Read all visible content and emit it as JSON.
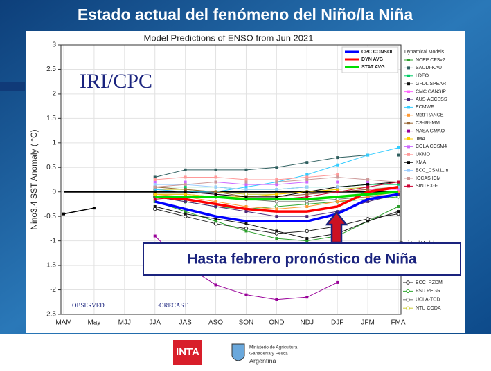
{
  "page_title": "Estado actual del fenómeno del Niño/la Niña",
  "footer": {
    "logo": "INTA",
    "ministry": [
      "Ministerio de Agricultura,",
      "Ganadería y Pesca",
      "Argentina"
    ]
  },
  "chart_data": {
    "type": "line",
    "title": "Model Predictions of ENSO from Jun 2021",
    "y_label": "Nino3.4 SST Anomaly ( °C)",
    "annotations": {
      "source": "IRI/CPC",
      "observed": "OBSERVED",
      "forecast": "FORECAST",
      "callout": "Hasta febrero pronóstico de Niña"
    },
    "categories": [
      "MAM",
      "May",
      "MJJ",
      "JJA",
      "JAS",
      "ASO",
      "SON",
      "OND",
      "NDJ",
      "DJF",
      "JFM",
      "FMA"
    ],
    "ylim": [
      -2.5,
      3.0
    ],
    "yticks": [
      -2.5,
      -2.0,
      -1.5,
      -1.0,
      -0.5,
      0.0,
      0.5,
      1.0,
      1.5,
      2.0,
      2.5,
      3.0
    ],
    "grid": true,
    "observed": {
      "color": "#000000",
      "values": [
        -0.45,
        -0.33,
        null,
        null,
        null,
        null,
        null,
        null,
        null,
        null,
        null,
        null
      ]
    },
    "series": [
      {
        "name": "CPC CONSOL",
        "color": "#0000ff",
        "values": [
          null,
          null,
          null,
          -0.2,
          -0.35,
          -0.5,
          -0.6,
          -0.6,
          -0.6,
          -0.45,
          -0.15,
          -0.05
        ]
      },
      {
        "name": "DYN AVG",
        "color": "#ff0000",
        "values": [
          null,
          null,
          null,
          -0.1,
          -0.15,
          -0.25,
          -0.35,
          -0.4,
          -0.4,
          -0.3,
          0.0,
          0.1
        ]
      },
      {
        "name": "STAT AVG",
        "color": "#00dd00",
        "values": [
          null,
          null,
          null,
          -0.1,
          -0.1,
          -0.1,
          -0.15,
          -0.15,
          -0.15,
          -0.1,
          -0.05,
          0.0
        ]
      }
    ],
    "dynamical_models": {
      "title": "Dynamical Models",
      "series": [
        {
          "name": "NCEP CFSv2",
          "color": "#2ca02c",
          "values": [
            null,
            null,
            null,
            -0.2,
            -0.4,
            -0.6,
            -0.8,
            -0.95,
            -1.0,
            -0.9,
            -0.6,
            -0.3
          ]
        },
        {
          "name": "SAUDI-KAU",
          "color": "#2f5f5f",
          "values": [
            null,
            null,
            null,
            0.3,
            0.45,
            0.45,
            0.45,
            0.5,
            0.6,
            0.7,
            0.75,
            0.75
          ]
        },
        {
          "name": "LDEO",
          "color": "#00cc66",
          "values": [
            null,
            null,
            null,
            0.1,
            0.1,
            0.1,
            0.05,
            0.05,
            0.1,
            0.1,
            0.15,
            0.15
          ]
        },
        {
          "name": "GFDL SPEAR",
          "color": "#111111",
          "values": [
            null,
            null,
            null,
            -0.3,
            -0.45,
            -0.55,
            -0.65,
            -0.8,
            -0.95,
            -0.85,
            -0.6,
            -0.4
          ]
        },
        {
          "name": "CMC CANSIP",
          "color": "#ff66ff",
          "values": [
            null,
            null,
            null,
            0.05,
            0.0,
            -0.05,
            -0.1,
            -0.1,
            -0.05,
            0.0,
            0.05,
            0.05
          ]
        },
        {
          "name": "AUS-ACCESS",
          "color": "#4b2a7b",
          "values": [
            null,
            null,
            null,
            -0.1,
            -0.2,
            -0.3,
            -0.4,
            -0.5,
            -0.5,
            -0.4,
            -0.2,
            -0.05
          ]
        },
        {
          "name": "ECMWF",
          "color": "#33ccff",
          "values": [
            null,
            null,
            null,
            0.05,
            0.0,
            0.0,
            0.1,
            0.2,
            0.35,
            0.55,
            0.75,
            0.9
          ]
        },
        {
          "name": "MetFRANCE",
          "color": "#ff9933",
          "values": [
            null,
            null,
            null,
            -0.05,
            -0.1,
            -0.2,
            -0.3,
            -0.35,
            -0.3,
            -0.2,
            -0.1,
            0.0
          ]
        },
        {
          "name": "CS-IRI-MM",
          "color": "#996633",
          "values": [
            null,
            null,
            null,
            0.1,
            0.05,
            0.0,
            -0.1,
            -0.1,
            -0.05,
            0.0,
            0.05,
            0.1
          ]
        },
        {
          "name": "NASA GMAO",
          "color": "#990099",
          "values": [
            null,
            null,
            null,
            -0.9,
            -1.5,
            -1.9,
            -2.1,
            -2.2,
            -2.15,
            -1.85,
            null,
            null
          ]
        },
        {
          "name": "JMA",
          "color": "#ffcc00",
          "values": [
            null,
            null,
            null,
            -0.05,
            -0.05,
            -0.1,
            -0.1,
            -0.05,
            0.0,
            0.05,
            null,
            null
          ]
        },
        {
          "name": "COLA CCSM4",
          "color": "#cc66ff",
          "values": [
            null,
            null,
            null,
            0.2,
            0.2,
            0.2,
            0.15,
            0.15,
            0.2,
            0.2,
            0.2,
            0.2
          ]
        },
        {
          "name": "UKMO",
          "color": "#ff9999",
          "values": [
            null,
            null,
            null,
            0.25,
            0.3,
            0.3,
            0.25,
            0.25,
            0.3,
            0.35,
            null,
            null
          ]
        },
        {
          "name": "KMA",
          "color": "#000000",
          "values": [
            null,
            null,
            null,
            0.0,
            0.0,
            -0.05,
            -0.1,
            -0.1,
            0.0,
            0.1,
            0.15,
            0.2
          ]
        },
        {
          "name": "BCC_CSM11m",
          "color": "#99ccff",
          "values": [
            null,
            null,
            null,
            0.15,
            0.15,
            0.1,
            0.05,
            0.05,
            0.1,
            0.1,
            0.1,
            0.1
          ]
        },
        {
          "name": "IOCAS ICM",
          "color": "#cc9999",
          "values": [
            null,
            null,
            null,
            0.1,
            0.15,
            0.2,
            0.2,
            0.2,
            0.25,
            0.3,
            0.25,
            0.2
          ]
        },
        {
          "name": "SINTEX-F",
          "color": "#cc0033",
          "values": [
            null,
            null,
            null,
            -0.15,
            -0.1,
            -0.1,
            -0.15,
            -0.15,
            -0.1,
            0.0,
            0.1,
            0.2
          ]
        }
      ]
    },
    "statistical_models": {
      "title": "Statistical Models",
      "series": [
        {
          "name": "BCC_RZDM",
          "color": "#222222",
          "values": [
            null,
            null,
            null,
            -0.35,
            -0.5,
            -0.65,
            -0.75,
            -0.85,
            -0.8,
            -0.7,
            -0.55,
            -0.45
          ]
        },
        {
          "name": "FSU REGR",
          "color": "#33aa33",
          "values": [
            null,
            null,
            null,
            -0.1,
            -0.2,
            -0.3,
            -0.35,
            -0.3,
            -0.25,
            -0.2,
            -0.15,
            -0.1
          ]
        },
        {
          "name": "UCLA-TCD",
          "color": "#777777",
          "values": [
            null,
            null,
            null,
            -0.05,
            -0.05,
            -0.1,
            -0.15,
            -0.2,
            -0.2,
            -0.15,
            -0.1,
            -0.05
          ]
        },
        {
          "name": "NTU CODA",
          "color": "#cccc33",
          "values": [
            null,
            null,
            null,
            0.05,
            0.05,
            0.0,
            -0.05,
            -0.05,
            0.0,
            0.05,
            0.1,
            0.1
          ]
        }
      ]
    }
  }
}
